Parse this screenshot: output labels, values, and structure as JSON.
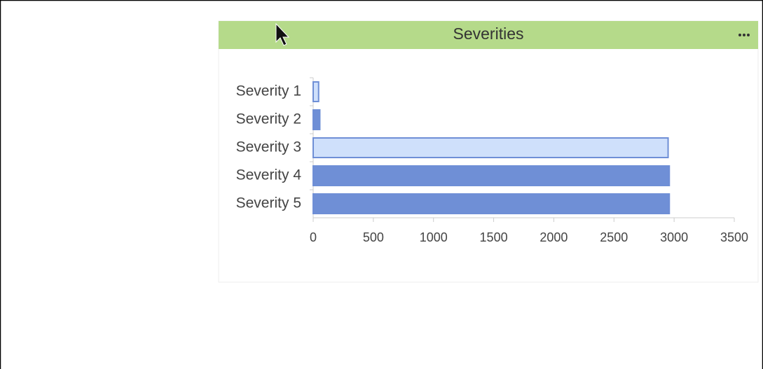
{
  "chart_data": {
    "type": "bar",
    "orientation": "horizontal",
    "title": "Severities",
    "categories": [
      "Severity 1",
      "Severity 2",
      "Severity 3",
      "Severity 4",
      "Severity 5"
    ],
    "values": [
      45,
      55,
      2950,
      2960,
      2960
    ],
    "colors": [
      "#cfe0fb",
      "#6f8fd6",
      "#cfe0fb",
      "#6f8fd6",
      "#6f8fd6"
    ],
    "xlim": [
      0,
      3500
    ],
    "xticks": [
      0,
      500,
      1000,
      1500,
      2000,
      2500,
      3000,
      3500
    ],
    "grid": false
  }
}
